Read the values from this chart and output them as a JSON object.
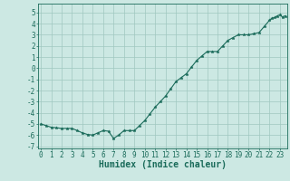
{
  "x_values": [
    0,
    0.5,
    1,
    1.5,
    2,
    2.5,
    3,
    3.5,
    4,
    4.5,
    5,
    5.5,
    6,
    6.5,
    7,
    7.5,
    8,
    8.5,
    9,
    9.5,
    10,
    10.5,
    11,
    11.5,
    12,
    12.5,
    13,
    13.5,
    14,
    14.5,
    15,
    15.5,
    16,
    16.5,
    17,
    17.5,
    18,
    18.5,
    19,
    19.5,
    20,
    20.5,
    21,
    21.5,
    22,
    22.25,
    22.5,
    22.75,
    23,
    23.25,
    23.5
  ],
  "y_values": [
    -5.0,
    -5.15,
    -5.3,
    -5.35,
    -5.4,
    -5.4,
    -5.4,
    -5.6,
    -5.8,
    -5.95,
    -6.0,
    -5.8,
    -5.6,
    -5.65,
    -6.3,
    -6.0,
    -5.6,
    -5.6,
    -5.6,
    -5.15,
    -4.7,
    -4.1,
    -3.5,
    -3.0,
    -2.5,
    -1.85,
    -1.2,
    -0.85,
    -0.5,
    0.1,
    0.7,
    1.1,
    1.5,
    1.5,
    1.5,
    2.0,
    2.5,
    2.75,
    3.0,
    3.0,
    3.0,
    3.1,
    3.2,
    3.75,
    4.3,
    4.5,
    4.55,
    4.7,
    4.8,
    4.6,
    4.7
  ],
  "line_color": "#1a6b5a",
  "marker": "*",
  "marker_size": 2.5,
  "bg_color": "#cce8e3",
  "grid_color": "#a0c8c0",
  "tick_color": "#1a6b5a",
  "xlabel": "Humidex (Indice chaleur)",
  "ylim": [
    -7.2,
    5.8
  ],
  "xlim": [
    -0.3,
    23.7
  ],
  "yticks": [
    -7,
    -6,
    -5,
    -4,
    -3,
    -2,
    -1,
    0,
    1,
    2,
    3,
    4,
    5
  ],
  "xticks": [
    0,
    1,
    2,
    3,
    4,
    5,
    6,
    7,
    8,
    9,
    10,
    11,
    12,
    13,
    14,
    15,
    16,
    17,
    18,
    19,
    20,
    21,
    22,
    23
  ],
  "font_size": 5.5,
  "label_font_size": 7
}
